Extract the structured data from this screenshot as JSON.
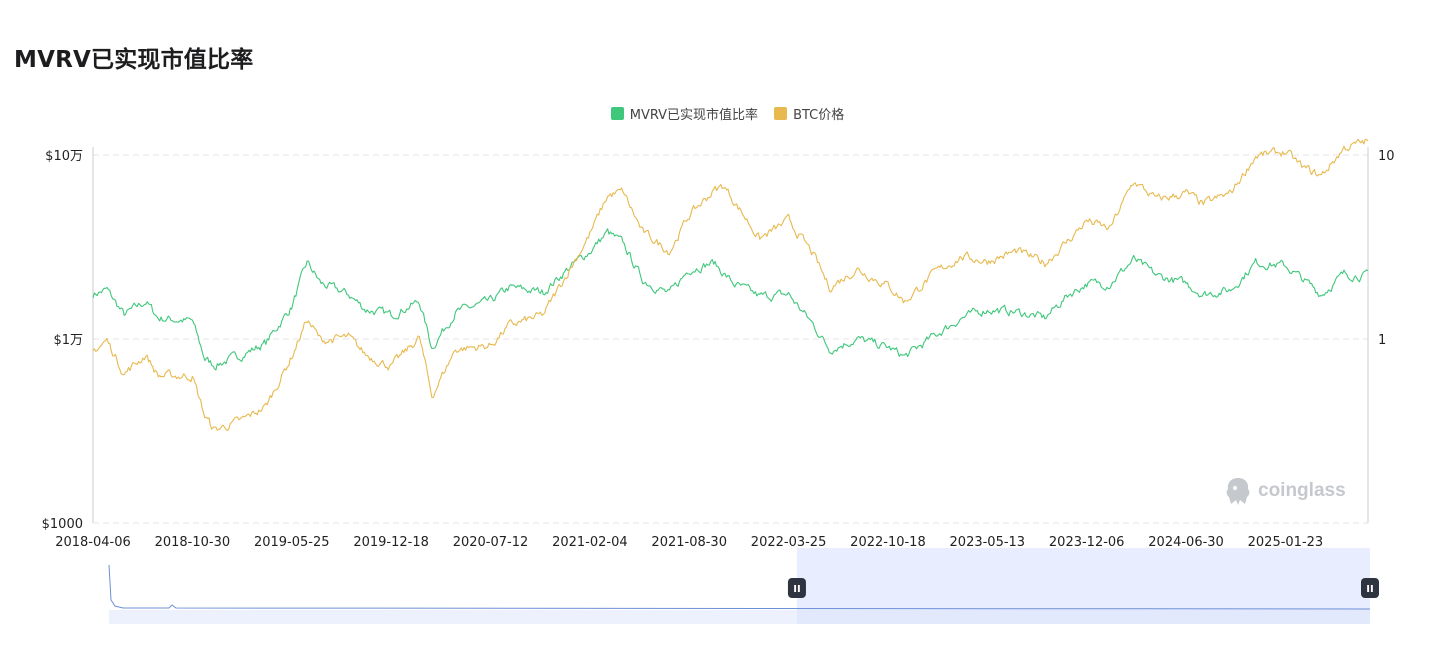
{
  "title": "MVRV已实现市值比率",
  "legend": [
    {
      "label": "MVRV已实现市值比率",
      "color": "#3fc77b"
    },
    {
      "label": "BTC价格",
      "color": "#e7b94f"
    }
  ],
  "watermark": "coinglass",
  "colors": {
    "mvrv": "#3fc77b",
    "price": "#e7b94f",
    "grid": "#e4e6ea",
    "navigator_fill": "#e8eeff",
    "navigator_line": "#6b8fd6",
    "handle": "#2e3440"
  },
  "chart_data": {
    "type": "line",
    "title": "MVRV已实现市值比率",
    "x_tick_labels": [
      "2018-04-06",
      "2018-10-30",
      "2019-05-25",
      "2019-12-18",
      "2020-07-12",
      "2021-02-04",
      "2021-08-30",
      "2022-03-25",
      "2022-10-18",
      "2023-05-13",
      "2023-12-06",
      "2024-06-30",
      "2025-01-23"
    ],
    "x_range": [
      "2018-04-06",
      "2025-07-14"
    ],
    "left_axis": {
      "scale": "log",
      "range": [
        1000,
        100000
      ],
      "tick_labels": [
        "$10万",
        "$1万",
        "$1000"
      ],
      "tick_values": [
        100000,
        10000,
        1000
      ]
    },
    "right_axis": {
      "scale": "log",
      "range": [
        0.1,
        10
      ],
      "tick_labels": [
        "10",
        "1"
      ],
      "tick_values": [
        10,
        1
      ]
    },
    "grid": true,
    "legend_position": "top-center",
    "series": [
      {
        "name": "MVRV已实现市值比率",
        "axis": "right",
        "points": [
          [
            "2018-04-06",
            1.75
          ],
          [
            "2018-05-05",
            1.85
          ],
          [
            "2018-06-10",
            1.35
          ],
          [
            "2018-07-25",
            1.6
          ],
          [
            "2018-08-20",
            1.3
          ],
          [
            "2018-10-30",
            1.25
          ],
          [
            "2018-11-25",
            0.78
          ],
          [
            "2018-12-15",
            0.72
          ],
          [
            "2019-02-10",
            0.82
          ],
          [
            "2019-04-01",
            0.95
          ],
          [
            "2019-05-25",
            1.5
          ],
          [
            "2019-06-26",
            2.6
          ],
          [
            "2019-07-25",
            2.0
          ],
          [
            "2019-09-20",
            1.75
          ],
          [
            "2019-10-26",
            1.45
          ],
          [
            "2019-12-18",
            1.35
          ],
          [
            "2020-02-15",
            1.6
          ],
          [
            "2020-03-12",
            0.9
          ],
          [
            "2020-04-30",
            1.4
          ],
          [
            "2020-07-12",
            1.6
          ],
          [
            "2020-08-20",
            1.9
          ],
          [
            "2020-10-30",
            1.8
          ],
          [
            "2020-12-20",
            2.4
          ],
          [
            "2021-02-04",
            3.0
          ],
          [
            "2021-03-13",
            3.8
          ],
          [
            "2021-04-14",
            3.3
          ],
          [
            "2021-05-25",
            2.1
          ],
          [
            "2021-07-20",
            1.75
          ],
          [
            "2021-08-30",
            2.4
          ],
          [
            "2021-10-20",
            2.6
          ],
          [
            "2021-11-30",
            2.0
          ],
          [
            "2022-01-24",
            1.7
          ],
          [
            "2022-03-25",
            1.75
          ],
          [
            "2022-05-15",
            1.2
          ],
          [
            "2022-06-18",
            0.88
          ],
          [
            "2022-08-15",
            1.0
          ],
          [
            "2022-10-18",
            0.9
          ],
          [
            "2022-11-22",
            0.8
          ],
          [
            "2023-01-25",
            1.05
          ],
          [
            "2023-03-20",
            1.3
          ],
          [
            "2023-05-13",
            1.45
          ],
          [
            "2023-07-15",
            1.4
          ],
          [
            "2023-09-10",
            1.3
          ],
          [
            "2023-10-30",
            1.75
          ],
          [
            "2023-12-06",
            2.0
          ],
          [
            "2024-01-23",
            2.0
          ],
          [
            "2024-03-13",
            2.7
          ],
          [
            "2024-05-01",
            2.2
          ],
          [
            "2024-06-30",
            2.0
          ],
          [
            "2024-08-05",
            1.75
          ],
          [
            "2024-10-01",
            1.85
          ],
          [
            "2024-11-22",
            2.6
          ],
          [
            "2025-01-23",
            2.5
          ],
          [
            "2025-03-01",
            2.1
          ],
          [
            "2025-04-08",
            1.75
          ],
          [
            "2025-05-25",
            2.25
          ],
          [
            "2025-07-14",
            2.2
          ]
        ]
      },
      {
        "name": "BTC价格",
        "axis": "left",
        "points": [
          [
            "2018-04-06",
            8600
          ],
          [
            "2018-05-05",
            9800
          ],
          [
            "2018-06-10",
            6500
          ],
          [
            "2018-07-25",
            8200
          ],
          [
            "2018-08-20",
            6300
          ],
          [
            "2018-10-30",
            6300
          ],
          [
            "2018-11-25",
            3800
          ],
          [
            "2018-12-15",
            3200
          ],
          [
            "2019-02-10",
            3600
          ],
          [
            "2019-04-01",
            4300
          ],
          [
            "2019-05-25",
            8000
          ],
          [
            "2019-06-26",
            12800
          ],
          [
            "2019-07-25",
            9800
          ],
          [
            "2019-09-20",
            10200
          ],
          [
            "2019-10-26",
            8200
          ],
          [
            "2019-12-18",
            7100
          ],
          [
            "2020-02-15",
            10200
          ],
          [
            "2020-03-12",
            4900
          ],
          [
            "2020-04-30",
            8800
          ],
          [
            "2020-07-12",
            9200
          ],
          [
            "2020-08-20",
            11800
          ],
          [
            "2020-10-30",
            13500
          ],
          [
            "2020-12-20",
            23000
          ],
          [
            "2021-02-04",
            37000
          ],
          [
            "2021-03-13",
            60000
          ],
          [
            "2021-04-14",
            63000
          ],
          [
            "2021-05-25",
            38000
          ],
          [
            "2021-07-20",
            30000
          ],
          [
            "2021-08-30",
            47000
          ],
          [
            "2021-10-20",
            64000
          ],
          [
            "2021-11-10",
            68000
          ],
          [
            "2022-01-24",
            35000
          ],
          [
            "2022-03-25",
            44000
          ],
          [
            "2022-05-15",
            29000
          ],
          [
            "2022-06-18",
            19000
          ],
          [
            "2022-08-15",
            24000
          ],
          [
            "2022-10-18",
            19500
          ],
          [
            "2022-11-22",
            16000
          ],
          [
            "2023-01-25",
            23000
          ],
          [
            "2023-03-20",
            28000
          ],
          [
            "2023-05-13",
            26500
          ],
          [
            "2023-07-15",
            30000
          ],
          [
            "2023-09-10",
            25800
          ],
          [
            "2023-10-30",
            34500
          ],
          [
            "2023-12-06",
            44000
          ],
          [
            "2024-01-23",
            39500
          ],
          [
            "2024-03-13",
            72000
          ],
          [
            "2024-05-01",
            57000
          ],
          [
            "2024-06-30",
            62000
          ],
          [
            "2024-08-05",
            54000
          ],
          [
            "2024-10-01",
            62000
          ],
          [
            "2024-11-22",
            99000
          ],
          [
            "2025-01-23",
            104000
          ],
          [
            "2025-03-01",
            85000
          ],
          [
            "2025-04-08",
            77000
          ],
          [
            "2025-05-25",
            109000
          ],
          [
            "2025-07-14",
            119000
          ]
        ]
      }
    ]
  },
  "navigator": {
    "selection_start": "2022-03-25",
    "selection_end": "2025-07-14",
    "handle_glyph": "II"
  }
}
